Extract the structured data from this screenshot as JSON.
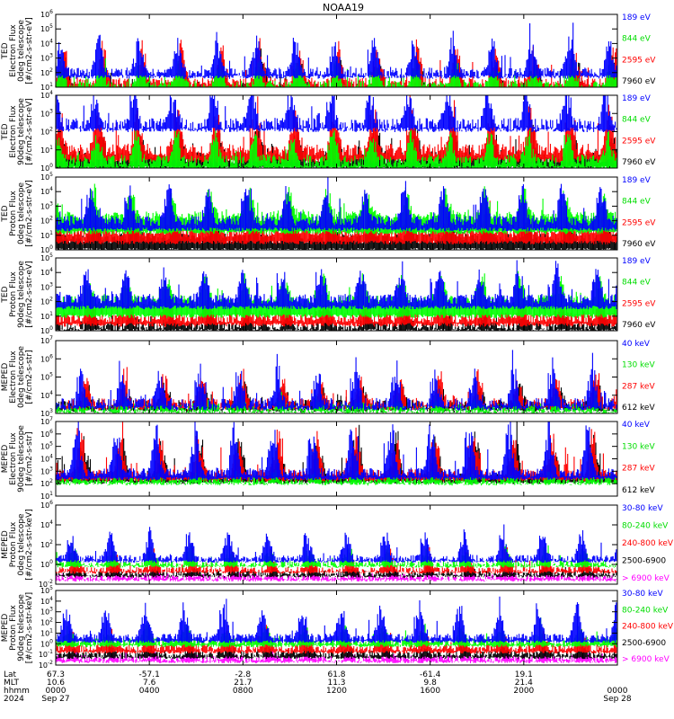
{
  "title": "NOAA19",
  "colors": {
    "black": "#000000",
    "red": "#ff0000",
    "green": "#00ff00",
    "blue": "#0000ff",
    "magenta": "#ff00ff"
  },
  "chart_data": [
    {
      "type": "line",
      "ylabel": [
        "TED",
        "Electron Flux",
        "0deg telescope",
        "[#/cm2-s-str-eV]"
      ],
      "ylog": true,
      "ytick_exponents": [
        1,
        2,
        3,
        4,
        5,
        6
      ],
      "series": [
        {
          "name": "7960 eV",
          "color": "black",
          "base": 0.9,
          "spikes": 1.8,
          "floor": 0.5
        },
        {
          "name": "2595 eV",
          "color": "red",
          "base": 1.3,
          "spikes": 2.4,
          "floor": 0.7
        },
        {
          "name": "844 eV",
          "color": "green",
          "base": 1.1,
          "spikes": 1.6,
          "floor": 0.9
        },
        {
          "name": "189 eV",
          "color": "blue",
          "base": 2.0,
          "spikes": 2.2,
          "floor": 1.7
        }
      ]
    },
    {
      "type": "line",
      "ylabel": [
        "TED",
        "Electron Flux",
        "90deg telescope",
        "[#/cm2-s-str-eV]"
      ],
      "ylog": true,
      "ytick_exponents": [
        0,
        1,
        2,
        3,
        4
      ],
      "series": [
        {
          "name": "7960 eV",
          "color": "black",
          "base": 0.6,
          "spikes": 1.6,
          "floor": 0.0
        },
        {
          "name": "2595 eV",
          "color": "red",
          "base": 1.0,
          "spikes": 2.2,
          "floor": 0.4
        },
        {
          "name": "844 eV",
          "color": "green",
          "base": 0.4,
          "spikes": 1.4,
          "floor": 0.0
        },
        {
          "name": "189 eV",
          "color": "blue",
          "base": 2.4,
          "spikes": 1.8,
          "floor": 2.1
        }
      ]
    },
    {
      "type": "line",
      "ylabel": [
        "TED",
        "Proton Flux",
        "0deg telescope",
        "[#/cm2-s-str-eV]"
      ],
      "ylog": true,
      "ytick_exponents": [
        0,
        1,
        2,
        3,
        4,
        5
      ],
      "series": [
        {
          "name": "7960 eV",
          "color": "black",
          "base": 0.8,
          "spikes": 1.2,
          "floor": 0.0
        },
        {
          "name": "2595 eV",
          "color": "red",
          "base": 1.2,
          "spikes": 1.4,
          "floor": 0.5
        },
        {
          "name": "844 eV",
          "color": "green",
          "base": 2.3,
          "spikes": 1.6,
          "floor": 1.2
        },
        {
          "name": "189 eV",
          "color": "blue",
          "base": 2.0,
          "spikes": 2.3,
          "floor": 1.4
        }
      ]
    },
    {
      "type": "line",
      "ylabel": [
        "TED",
        "Proton Flux",
        "90deg telescope",
        "[#/cm2-s-str-eV]"
      ],
      "ylog": true,
      "ytick_exponents": [
        0,
        1,
        2,
        3,
        4,
        5
      ],
      "series": [
        {
          "name": "7960 eV",
          "color": "black",
          "base": 0.3,
          "spikes": 1.0,
          "floor": 0.0
        },
        {
          "name": "2595 eV",
          "color": "red",
          "base": 0.9,
          "spikes": 1.3,
          "floor": 0.4
        },
        {
          "name": "844 eV",
          "color": "green",
          "base": 2.1,
          "spikes": 1.5,
          "floor": 1.0
        },
        {
          "name": "189 eV",
          "color": "blue",
          "base": 2.2,
          "spikes": 2.0,
          "floor": 1.6
        }
      ]
    },
    {
      "type": "line",
      "ylabel": [
        "MEPED",
        "Electron Flux",
        "0deg telescope",
        "[#/cm2-s-str]"
      ],
      "ylog": true,
      "ytick_exponents": [
        3,
        4,
        5,
        6,
        7
      ],
      "series": [
        {
          "name": "612 keV",
          "color": "black",
          "base": 3.4,
          "spikes": 1.1,
          "floor": 3.2
        },
        {
          "name": "287 keV",
          "color": "red",
          "base": 3.5,
          "spikes": 1.6,
          "floor": 3.3
        },
        {
          "name": "130 keV",
          "color": "green",
          "base": 3.2,
          "spikes": 0.6,
          "floor": 3.1
        },
        {
          "name": "40 keV",
          "color": "blue",
          "base": 3.5,
          "spikes": 2.0,
          "floor": 3.3
        }
      ]
    },
    {
      "type": "line",
      "ylabel": [
        "MEPED",
        "Electron Flux",
        "90deg telescope",
        "[#/cm2-s-str]"
      ],
      "ylog": true,
      "ytick_exponents": [
        1,
        2,
        3,
        4,
        5,
        6,
        7
      ],
      "series": [
        {
          "name": "612 keV",
          "color": "black",
          "base": 2.5,
          "spikes": 3.0,
          "floor": 2.1
        },
        {
          "name": "287 keV",
          "color": "red",
          "base": 2.8,
          "spikes": 3.2,
          "floor": 2.3
        },
        {
          "name": "130 keV",
          "color": "green",
          "base": 2.2,
          "spikes": 0.6,
          "floor": 2.0
        },
        {
          "name": "40 keV",
          "color": "blue",
          "base": 2.9,
          "spikes": 3.6,
          "floor": 2.4
        }
      ]
    },
    {
      "type": "line",
      "ylabel": [
        "MEPED",
        "Proton Flux",
        "0deg telescope",
        "[#/cm2-s-str-keV]"
      ],
      "ylog": true,
      "ytick_exponents": [
        -2,
        0,
        2,
        4,
        6
      ],
      "series": [
        {
          "name": "> 6900 keV",
          "color": "magenta",
          "base": -1.3,
          "spikes": 0.4,
          "floor": -1.6
        },
        {
          "name": "2500-6900",
          "color": "black",
          "base": -1.0,
          "spikes": 0.8,
          "floor": -1.2
        },
        {
          "name": "240-800 keV",
          "color": "red",
          "base": -0.6,
          "spikes": 1.8,
          "floor": -0.8
        },
        {
          "name": "80-240 keV",
          "color": "green",
          "base": 0.0,
          "spikes": 1.6,
          "floor": -0.2
        },
        {
          "name": "30-80 keV",
          "color": "blue",
          "base": 0.6,
          "spikes": 2.6,
          "floor": 0.3
        }
      ]
    },
    {
      "type": "line",
      "ylabel": [
        "MEPED",
        "Proton Flux",
        "90deg telescope",
        "[#/cm2-s-str-keV]"
      ],
      "ylog": true,
      "ytick_exponents": [
        -2,
        -1,
        0,
        1,
        2,
        3,
        4,
        5
      ],
      "series": [
        {
          "name": "> 6900 keV",
          "color": "magenta",
          "base": -1.4,
          "spikes": 0.6,
          "floor": -1.7
        },
        {
          "name": "2500-6900",
          "color": "black",
          "base": -1.0,
          "spikes": 0.8,
          "floor": -1.3
        },
        {
          "name": "240-800 keV",
          "color": "red",
          "base": -0.4,
          "spikes": 1.6,
          "floor": -0.8
        },
        {
          "name": "80-240 keV",
          "color": "green",
          "base": 0.2,
          "spikes": 1.4,
          "floor": -0.2
        },
        {
          "name": "30-80 keV",
          "color": "blue",
          "base": 0.6,
          "spikes": 2.8,
          "floor": 0.2
        }
      ]
    }
  ],
  "xaxis": {
    "row_labels": [
      "Lat",
      "MLT",
      "hhmm",
      "2024"
    ],
    "columns": [
      {
        "lat": "67.3",
        "mlt": "10.6",
        "hhmm": "0000",
        "date": "Sep 27"
      },
      {
        "lat": "-57.1",
        "mlt": "7.6",
        "hhmm": "0400",
        "date": ""
      },
      {
        "lat": "-2.8",
        "mlt": "21.7",
        "hhmm": "0800",
        "date": ""
      },
      {
        "lat": "61.8",
        "mlt": "11.3",
        "hhmm": "1200",
        "date": ""
      },
      {
        "lat": "-61.4",
        "mlt": "9.8",
        "hhmm": "1600",
        "date": ""
      },
      {
        "lat": "19.1",
        "mlt": "21.4",
        "hhmm": "2000",
        "date": ""
      },
      {
        "lat": "",
        "mlt": "",
        "hhmm": "0000",
        "date": "Sep 28"
      }
    ]
  }
}
